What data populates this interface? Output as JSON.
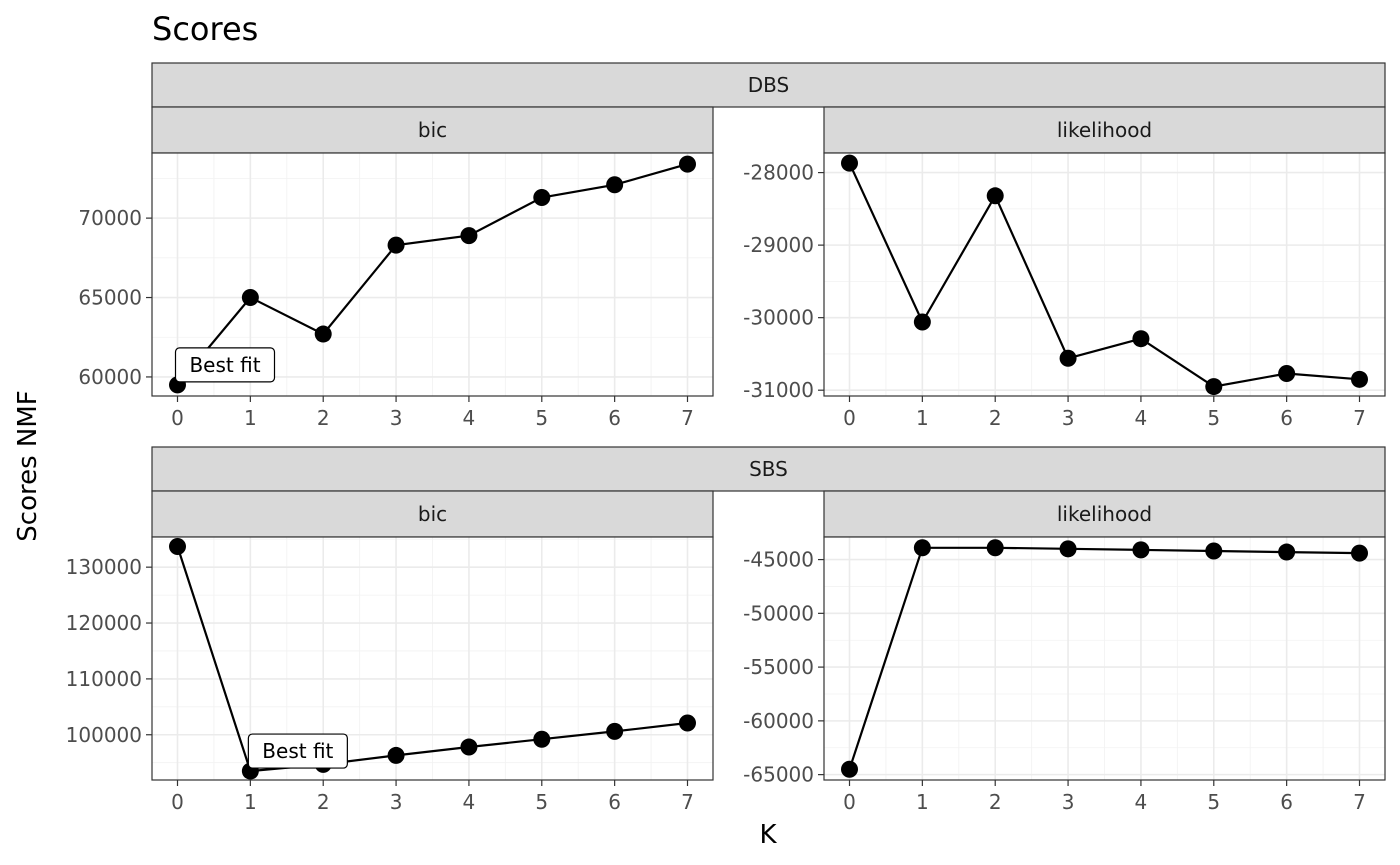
{
  "chart_data": {
    "type": "line",
    "title": "Scores",
    "xlabel": "K",
    "ylabel": "Scores NMF",
    "grid": true,
    "annotation_text": "Best fit",
    "x_ticks": [
      0,
      1,
      2,
      3,
      4,
      5,
      6,
      7
    ],
    "groups": [
      {
        "name": "DBS",
        "panels": [
          {
            "name": "bic",
            "x": [
              0,
              1,
              2,
              3,
              4,
              5,
              6,
              7
            ],
            "y": [
              59500,
              65000,
              62700,
              68300,
              68900,
              71300,
              72100,
              73400
            ],
            "y_ticks": [
              60000,
              65000,
              70000
            ],
            "y_tick_labels": [
              "60000",
              "65000",
              "70000"
            ],
            "ylim": [
              58800,
              74100
            ],
            "best_fit_k": 0
          },
          {
            "name": "likelihood",
            "x": [
              0,
              1,
              2,
              3,
              4,
              5,
              6,
              7
            ],
            "y": [
              -27870,
              -30060,
              -28320,
              -30560,
              -30290,
              -30950,
              -30770,
              -30850
            ],
            "y_ticks": [
              -31000,
              -30000,
              -29000,
              -28000
            ],
            "y_tick_labels": [
              "-31000",
              "-30000",
              "-29000",
              "-28000"
            ],
            "ylim": [
              -31080,
              -27730
            ]
          }
        ]
      },
      {
        "name": "SBS",
        "panels": [
          {
            "name": "bic",
            "x": [
              0,
              1,
              2,
              3,
              4,
              5,
              6,
              7
            ],
            "y": [
              133700,
              93500,
              94700,
              96300,
              97800,
              99200,
              100600,
              102100
            ],
            "y_ticks": [
              100000,
              110000,
              120000,
              130000
            ],
            "y_tick_labels": [
              "100000",
              "110000",
              "120000",
              "130000"
            ],
            "ylim": [
              91900,
              135400
            ],
            "best_fit_k": 1
          },
          {
            "name": "likelihood",
            "x": [
              0,
              1,
              2,
              3,
              4,
              5,
              6,
              7
            ],
            "y": [
              -64500,
              -43900,
              -43900,
              -44000,
              -44100,
              -44200,
              -44300,
              -44400
            ],
            "y_ticks": [
              -65000,
              -60000,
              -55000,
              -50000,
              -45000
            ],
            "y_tick_labels": [
              "-65000",
              "-60000",
              "-55000",
              "-50000",
              "-45000"
            ],
            "ylim": [
              -65500,
              -42900
            ]
          }
        ]
      }
    ]
  }
}
